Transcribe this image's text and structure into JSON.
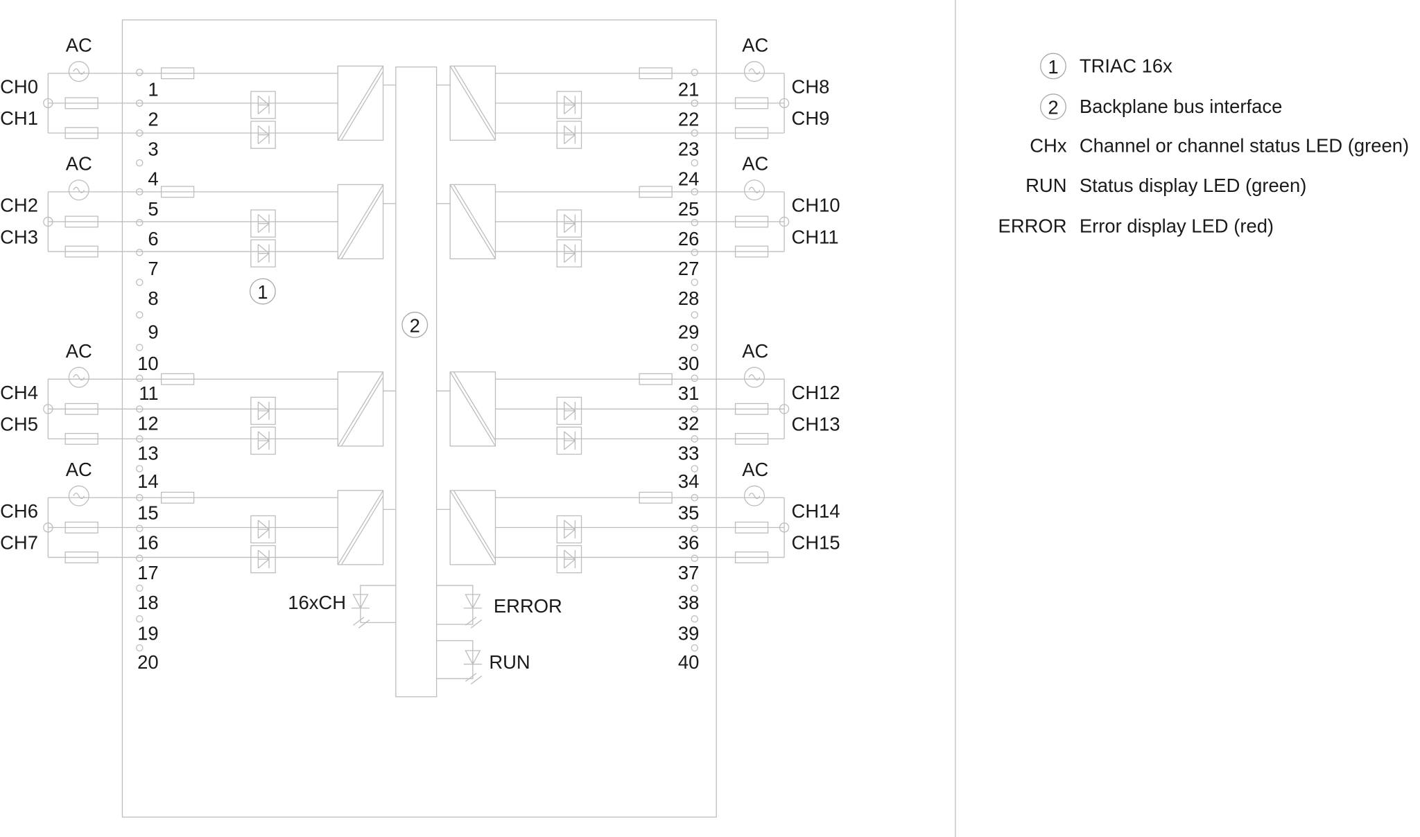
{
  "module": {
    "left_terminals": [
      "1",
      "2",
      "3",
      "4",
      "5",
      "6",
      "7",
      "8",
      "9",
      "10",
      "11",
      "12",
      "13",
      "14",
      "15",
      "16",
      "17",
      "18",
      "19",
      "20"
    ],
    "right_terminals": [
      "21",
      "22",
      "23",
      "24",
      "25",
      "26",
      "27",
      "28",
      "29",
      "30",
      "31",
      "32",
      "33",
      "34",
      "35",
      "36",
      "37",
      "38",
      "39",
      "40"
    ],
    "left_groups": [
      {
        "ac": "AC",
        "channels": [
          "CH0",
          "CH1"
        ]
      },
      {
        "ac": "AC",
        "channels": [
          "CH2",
          "CH3"
        ]
      },
      {
        "ac": "AC",
        "channels": [
          "CH4",
          "CH5"
        ]
      },
      {
        "ac": "AC",
        "channels": [
          "CH6",
          "CH7"
        ]
      }
    ],
    "right_groups": [
      {
        "ac": "AC",
        "channels": [
          "CH8",
          "CH9"
        ]
      },
      {
        "ac": "AC",
        "channels": [
          "CH10",
          "CH11"
        ]
      },
      {
        "ac": "AC",
        "channels": [
          "CH12",
          "CH13"
        ]
      },
      {
        "ac": "AC",
        "channels": [
          "CH14",
          "CH15"
        ]
      }
    ],
    "callouts": {
      "triac": "1",
      "bus": "2"
    },
    "leds": {
      "channels": "16xCH",
      "error": "ERROR",
      "run": "RUN"
    }
  },
  "legend": [
    {
      "key": "1",
      "circled": true,
      "text": "TRIAC 16x"
    },
    {
      "key": "2",
      "circled": true,
      "text": "Backplane bus interface"
    },
    {
      "key": "CHx",
      "circled": false,
      "text": "Channel or channel status LED (green)"
    },
    {
      "key": "RUN",
      "circled": false,
      "text": "Status display LED (green)"
    },
    {
      "key": "ERROR",
      "circled": false,
      "text": "Error display LED (red)"
    }
  ]
}
